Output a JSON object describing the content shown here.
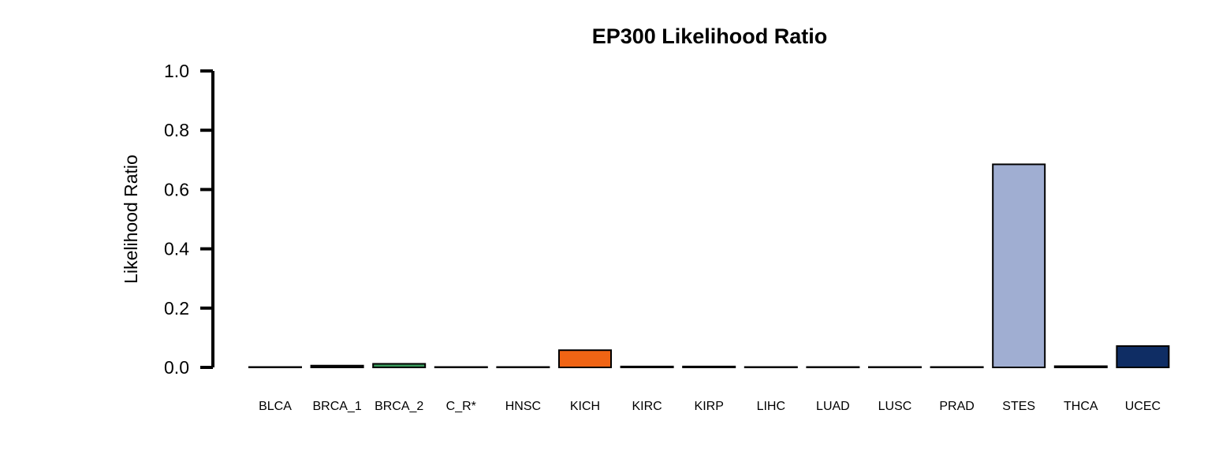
{
  "chart_data": {
    "type": "bar",
    "title": "EP300 Likelihood Ratio",
    "xlabel": "",
    "ylabel": "Likelihood Ratio",
    "ylim": [
      0,
      1.0
    ],
    "yticks": [
      "0.0",
      "0.2",
      "0.4",
      "0.6",
      "0.8",
      "1.0"
    ],
    "ytick_values": [
      0,
      0.2,
      0.4,
      0.6,
      0.8,
      1.0
    ],
    "grid": false,
    "legend": "none",
    "categories": [
      "BLCA",
      "BRCA_1",
      "BRCA_2",
      "C_R*",
      "HNSC",
      "KICH",
      "KIRC",
      "KIRP",
      "LIHC",
      "LUAD",
      "LUSC",
      "PRAD",
      "STES",
      "THCA",
      "UCEC"
    ],
    "values": [
      0.001,
      0.006,
      0.012,
      0.001,
      0.001,
      0.058,
      0.003,
      0.003,
      0.001,
      0.001,
      0.001,
      0.001,
      0.685,
      0.004,
      0.072
    ],
    "colors": [
      "#1f1f1f",
      "#1f1f1f",
      "#3a9a5c",
      "#1f1f1f",
      "#1f1f1f",
      "#f06414",
      "#1f1f1f",
      "#1f1f1f",
      "#1f1f1f",
      "#1f1f1f",
      "#1f1f1f",
      "#1f1f1f",
      "#a0aed2",
      "#1f1f1f",
      "#0f2d64"
    ]
  }
}
